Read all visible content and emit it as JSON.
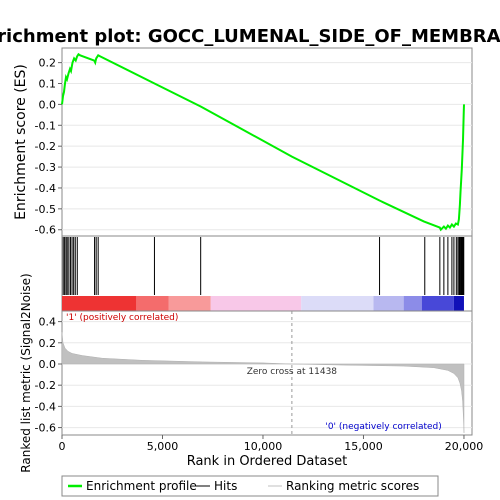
{
  "chart_data": {
    "type": "line",
    "title": "Enrichment plot: GOCC_LUMENAL_SIDE_OF_MEMBRANE",
    "es_panel": {
      "ylabel": "Enrichment score (ES)",
      "ylim": [
        -0.63,
        0.27
      ],
      "yticks": [
        0.2,
        0.1,
        0.0,
        -0.1,
        -0.2,
        -0.3,
        -0.4,
        -0.5,
        -0.6
      ],
      "ytick_labels": [
        "0.2",
        "0.1",
        "0.0",
        "-0.1",
        "-0.2",
        "-0.3",
        "-0.4",
        "-0.5",
        "-0.6"
      ],
      "series": [
        {
          "name": "Enrichment profile",
          "color": "#00ee00",
          "x": [
            0,
            50,
            100,
            150,
            200,
            250,
            330,
            400,
            450,
            520,
            600,
            680,
            750,
            820,
            900,
            1600,
            1650,
            1700,
            1800,
            1900,
            4600,
            6900,
            11438,
            15800,
            18000,
            18800,
            18850,
            19000,
            19100,
            19200,
            19300,
            19400,
            19500,
            19600,
            19700,
            19750,
            19800,
            19830,
            19860,
            19890,
            19920,
            19950,
            19970,
            19990,
            20000
          ],
          "y": [
            0.0,
            0.04,
            0.06,
            0.1,
            0.13,
            0.12,
            0.15,
            0.17,
            0.16,
            0.2,
            0.22,
            0.21,
            0.23,
            0.24,
            0.235,
            0.21,
            0.2,
            0.22,
            0.235,
            0.23,
            0.1,
            -0.01,
            -0.25,
            -0.46,
            -0.56,
            -0.59,
            -0.6,
            -0.585,
            -0.595,
            -0.58,
            -0.59,
            -0.575,
            -0.585,
            -0.57,
            -0.575,
            -0.55,
            -0.48,
            -0.42,
            -0.37,
            -0.31,
            -0.24,
            -0.17,
            -0.1,
            -0.03,
            0.0
          ]
        }
      ]
    },
    "hits": [
      60,
      130,
      200,
      260,
      340,
      420,
      500,
      580,
      660,
      760,
      1620,
      1700,
      1800,
      4600,
      6900,
      15800,
      18050,
      18800,
      19000,
      19200,
      19400,
      19500,
      19620,
      19700,
      19760,
      19800,
      19840,
      19870,
      19900,
      19930,
      19960,
      19990
    ],
    "metric_panel": {
      "ylabel": "Ranked list metric (Signal2Noise)",
      "ylim": [
        -0.67,
        0.5
      ],
      "yticks": [
        0.4,
        0.2,
        0.0,
        -0.2,
        -0.4,
        -0.6
      ],
      "ytick_labels": [
        "0.4",
        "0.2",
        "0.0",
        "-0.2",
        "-0.4",
        "-0.6"
      ],
      "fill_color": "#c0c0c0",
      "curve": {
        "x": [
          0,
          50,
          150,
          300,
          500,
          1000,
          2000,
          4000,
          7000,
          10000,
          11438,
          14000,
          17000,
          18500,
          19200,
          19500,
          19700,
          19800,
          19880,
          19930,
          19970,
          20000
        ],
        "y": [
          0.3,
          0.2,
          0.15,
          0.12,
          0.1,
          0.08,
          0.055,
          0.035,
          0.02,
          0.01,
          0.0,
          -0.01,
          -0.02,
          -0.035,
          -0.06,
          -0.09,
          -0.13,
          -0.18,
          -0.25,
          -0.35,
          -0.5,
          -0.65
        ]
      },
      "zero_cross_label": "Zero cross at 11438",
      "zero_cross": 11438,
      "pos_label": "'1' (positively correlated)",
      "neg_label": "'0' (negatively correlated)",
      "pos_color": "#cc0000",
      "neg_color": "#0000cc"
    },
    "xlabel": "Rank in Ordered Dataset",
    "xlim": [
      0,
      20400
    ],
    "xticks": [
      0,
      5000,
      10000,
      15000,
      20000
    ],
    "xtick_labels": [
      "0",
      "5,000",
      "10,000",
      "15,000",
      "20,000"
    ],
    "colorbar": [
      {
        "from": 0,
        "to": 3700,
        "color": "#ee3333"
      },
      {
        "from": 3700,
        "to": 5300,
        "color": "#f46c6c"
      },
      {
        "from": 5300,
        "to": 7400,
        "color": "#f89a9a"
      },
      {
        "from": 7400,
        "to": 11900,
        "color": "#f8c8e8"
      },
      {
        "from": 11900,
        "to": 15500,
        "color": "#dcdcf8"
      },
      {
        "from": 15500,
        "to": 17000,
        "color": "#b8b8f0"
      },
      {
        "from": 17000,
        "to": 17900,
        "color": "#8c8ce8"
      },
      {
        "from": 17900,
        "to": 19500,
        "color": "#4848d8"
      },
      {
        "from": 19500,
        "to": 20000,
        "color": "#1010b8"
      }
    ],
    "legend": {
      "position": "bottom",
      "items": [
        {
          "label": "Enrichment profile",
          "color": "#00ee00"
        },
        {
          "label": "Hits",
          "color": "#000000"
        },
        {
          "label": "Ranking metric scores",
          "color": "#c0c0c0"
        }
      ]
    }
  }
}
